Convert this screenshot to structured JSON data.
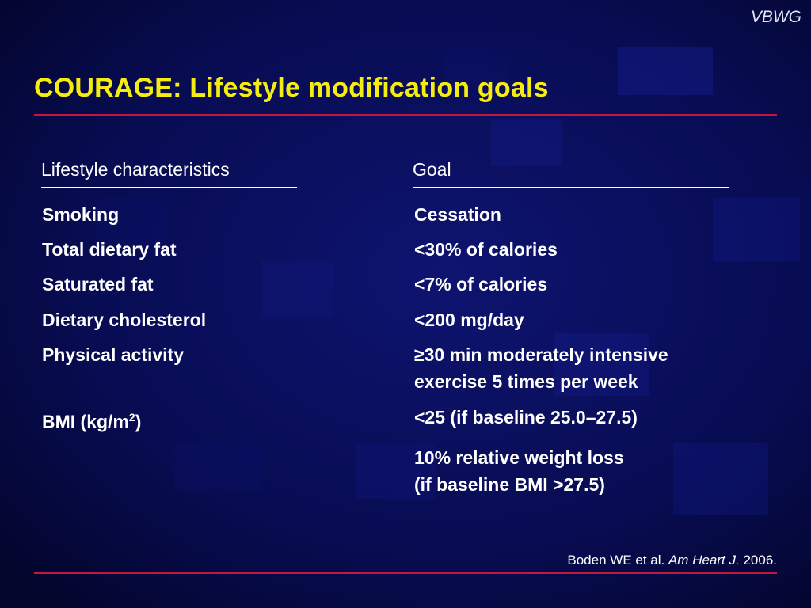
{
  "brand": "VBWG",
  "title": "COURAGE: Lifestyle modification goals",
  "table": {
    "headers": [
      "Lifestyle characteristics",
      "Goal"
    ],
    "rows": [
      {
        "characteristic": "Smoking",
        "goal": "Cessation"
      },
      {
        "characteristic": "Total dietary fat",
        "goal": "<30% of calories"
      },
      {
        "characteristic": "Saturated fat",
        "goal": "<7% of calories"
      },
      {
        "characteristic": "Dietary cholesterol",
        "goal": "<200 mg/day"
      },
      {
        "characteristic": "Physical activity",
        "goal_line1": "≥30 min moderately intensive",
        "goal_line2": "exercise 5 times per week"
      },
      {
        "characteristic": "BMI (kg/m",
        "characteristic_sup": "2",
        "characteristic_suffix": ")",
        "goal": "<25 (if baseline 25.0–27.5)"
      },
      {
        "goal_line1": "10% relative weight loss",
        "goal_line2": "(if baseline BMI >27.5)"
      }
    ]
  },
  "citation": {
    "authors": "Boden WE et al.",
    "journal": "Am Heart J.",
    "year": "2006."
  },
  "colors": {
    "background": "#05083a",
    "title": "#f5ec12",
    "rule": "#c2183f",
    "text": "#ffffff"
  }
}
